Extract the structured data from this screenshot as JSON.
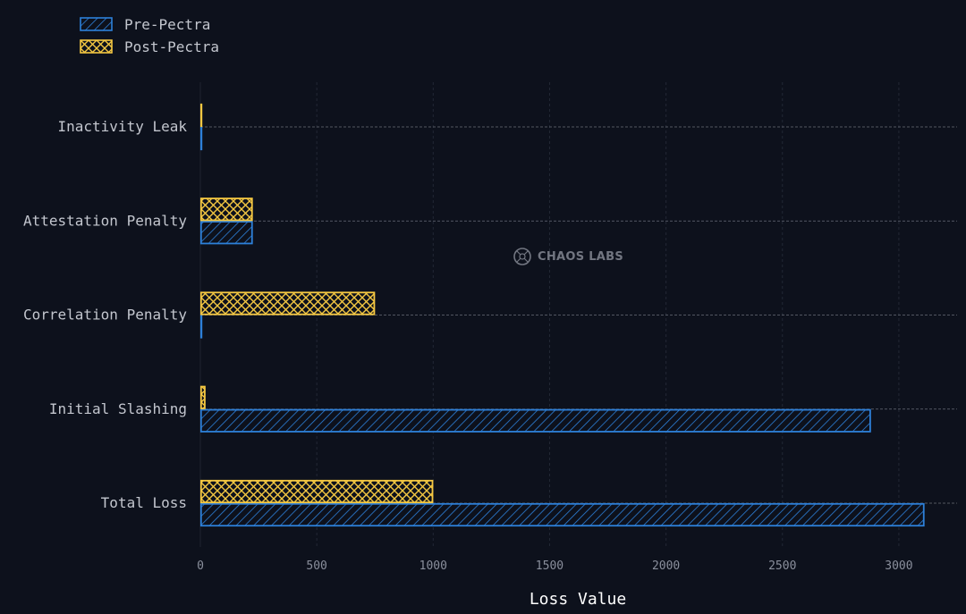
{
  "chart_data": {
    "type": "bar",
    "orientation": "horizontal",
    "categories": [
      "Inactivity Leak",
      "Attestation Penalty",
      "Correlation Penalty",
      "Initial Slashing",
      "Total Loss"
    ],
    "series": [
      {
        "name": "Pre-Pectra",
        "values": [
          0,
          225,
          0,
          2880,
          3110
        ],
        "color": "#2d80d9",
        "pattern": "diagonal-hatch"
      },
      {
        "name": "Post-Pectra",
        "values": [
          0,
          225,
          750,
          22,
          1000
        ],
        "color": "#f5c842",
        "pattern": "cross-hatch"
      }
    ],
    "xlabel": "Loss Value",
    "ylabel": "",
    "xlim": [
      0,
      3250
    ],
    "xticks": [
      "0",
      "500",
      "1000",
      "1500",
      "2000",
      "2500",
      "3000"
    ],
    "grid": true,
    "legend_position": "top-left"
  },
  "watermark": {
    "text": "CHAOS LABS",
    "icon": "chaos-labs-logo-icon"
  }
}
